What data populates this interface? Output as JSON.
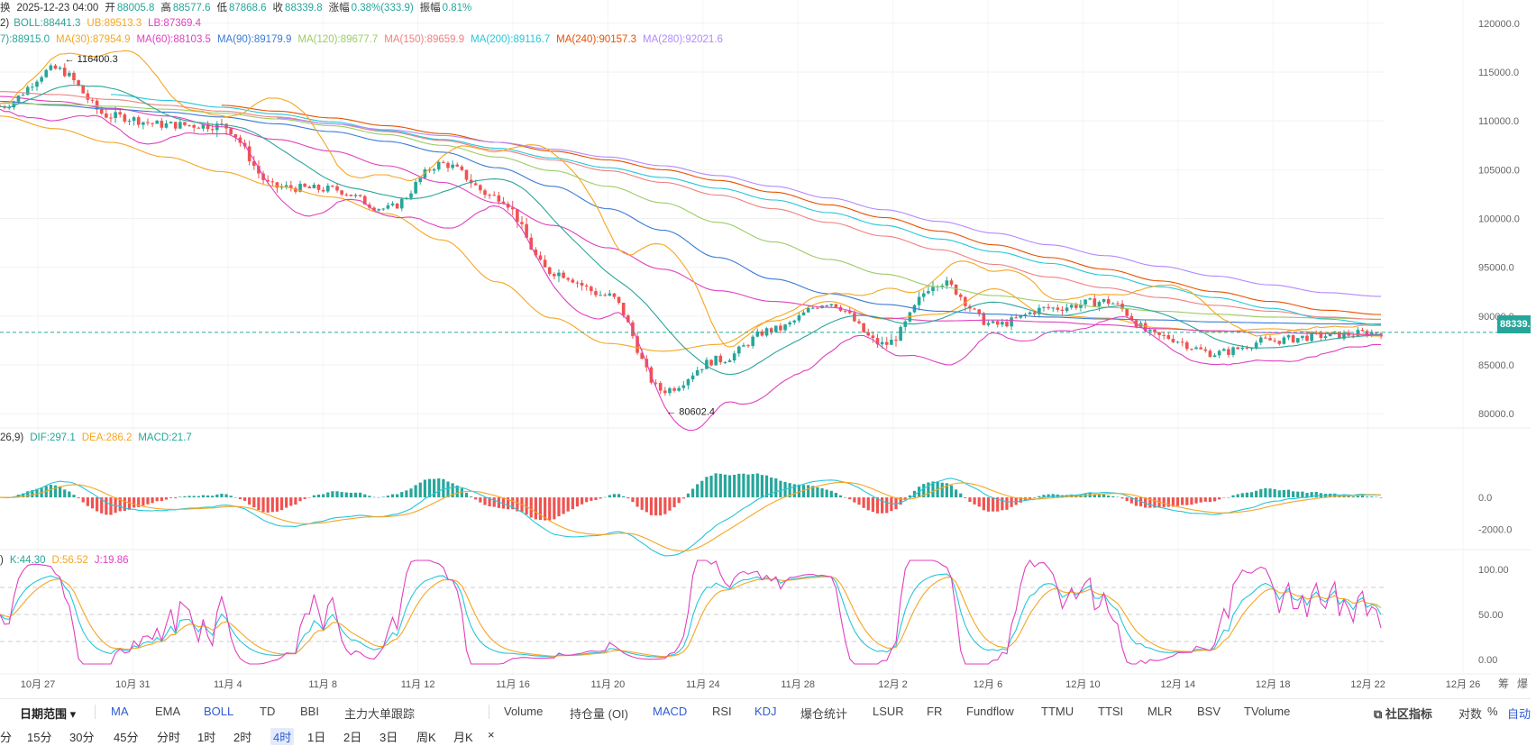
{
  "header": {
    "prefix": "换",
    "datetime": "2025-12-23 04:00",
    "open_label": "开",
    "open": "88005.8",
    "high_label": "高",
    "high": "88577.6",
    "low_label": "低",
    "low": "87868.6",
    "close_label": "收",
    "close": "88339.8",
    "change_label": "涨幅",
    "change": "0.38%(333.9)",
    "amplitude_label": "振幅",
    "amplitude": "0.81%"
  },
  "boll_legend": {
    "prefix": "2)",
    "boll": "BOLL:88441.3",
    "ub": "UB:89513.3",
    "lb": "LB:87369.4"
  },
  "ma_legend": [
    {
      "text": "7):88915.0",
      "color": "#2ba59a"
    },
    {
      "text": "MA(30):87954.9",
      "color": "#f5a623"
    },
    {
      "text": "MA(60):88103.5",
      "color": "#e040c0"
    },
    {
      "text": "MA(90):89179.9",
      "color": "#3a7bd5"
    },
    {
      "text": "MA(120):89677.7",
      "color": "#9ccc65"
    },
    {
      "text": "MA(150):89659.9",
      "color": "#f08080"
    },
    {
      "text": "MA(200):89116.7",
      "color": "#26c6da"
    },
    {
      "text": "MA(240):90157.3",
      "color": "#e65100"
    },
    {
      "text": "MA(280):92021.6",
      "color": "#b388ff"
    }
  ],
  "macd_legend": {
    "prefix": "26,9)",
    "dif": "DIF:297.1",
    "dea": "DEA:286.2",
    "macd": "MACD:21.7"
  },
  "kdj_legend": {
    "prefix": ")",
    "k": "K:44.30",
    "d": "D:56.52",
    "j": "J:19.86"
  },
  "colors": {
    "up": "#26a69a",
    "down": "#ef5350",
    "boll_mid": "#2ba59a",
    "boll_up": "#f5a623",
    "boll_low": "#e040c0",
    "dif": "#26c6da",
    "dea": "#f5a623",
    "k": "#26c6da",
    "d": "#f5a623",
    "j": "#e040c0"
  },
  "chart_data": [
    {
      "type": "candlestick",
      "series": [
        {
          "name": "MA(30)",
          "values": [
            110500,
            109200,
            107800,
            106300,
            104800,
            103300,
            102200,
            100500,
            97800,
            93500,
            89800,
            87200,
            86400,
            87100,
            89500,
            91500,
            89700,
            90200,
            92800,
            90100,
            89800,
            88800,
            88400,
            88700,
            88300,
            87950
          ]
        },
        {
          "name": "MA(60)",
          "values": [
            112500,
            112000,
            111300,
            110500,
            109400,
            108100,
            106900,
            105400,
            103700,
            101600,
            99300,
            97000,
            94800,
            92600,
            91500,
            90900,
            89800,
            89500,
            89600,
            89400,
            89100,
            88700,
            88500,
            88300,
            88200,
            88100
          ]
        },
        {
          "name": "MA(90)",
          "values": [
            112000,
            111600,
            111200,
            110900,
            110400,
            109700,
            108900,
            107900,
            106800,
            105200,
            103300,
            101000,
            98800,
            96000,
            93800,
            92300,
            91200,
            90500,
            90200,
            89900,
            89700,
            89600,
            89400,
            89300,
            89200,
            89180
          ]
        },
        {
          "name": "MA(120)",
          "values": [
            111800,
            111700,
            111500,
            111200,
            110800,
            110200,
            109500,
            108600,
            107500,
            106300,
            104900,
            103300,
            101600,
            99600,
            97600,
            95800,
            94300,
            93000,
            92100,
            91500,
            90900,
            90500,
            90200,
            89900,
            89800,
            89680
          ]
        },
        {
          "name": "MA(150)",
          "values": [
            113000,
            112700,
            112200,
            111600,
            111000,
            110400,
            109700,
            108900,
            108000,
            107000,
            106000,
            104900,
            103700,
            102400,
            101000,
            99600,
            98200,
            96800,
            95300,
            94000,
            92900,
            91900,
            91100,
            90500,
            89900,
            89660
          ]
        },
        {
          "name": "MA(200)",
          "values": [
            null,
            null,
            112700,
            112100,
            111400,
            110700,
            109900,
            109000,
            108100,
            107200,
            106200,
            105200,
            104200,
            103100,
            101900,
            100600,
            99300,
            97900,
            96600,
            95400,
            94200,
            93000,
            91900,
            90800,
            89700,
            89120
          ]
        },
        {
          "name": "MA(240)",
          "values": [
            null,
            null,
            null,
            null,
            111600,
            111000,
            110300,
            109500,
            108700,
            107800,
            106900,
            106000,
            105000,
            103900,
            102700,
            101400,
            100100,
            98700,
            97300,
            96000,
            94800,
            93600,
            92500,
            91500,
            90600,
            90160
          ]
        },
        {
          "name": "MA(280)",
          "values": [
            null,
            null,
            null,
            null,
            null,
            110300,
            109700,
            109100,
            108500,
            107800,
            107100,
            106300,
            105400,
            104400,
            103300,
            102100,
            100900,
            99700,
            98500,
            97300,
            96200,
            95100,
            94100,
            93200,
            92400,
            92020
          ]
        }
      ],
      "close": [
        111500,
        115300,
        110500,
        109600,
        109500,
        103200,
        103000,
        101000,
        105600,
        102200,
        94500,
        92100,
        82400,
        85500,
        88600,
        91400,
        87100,
        93500,
        89100,
        90800,
        91500,
        87900,
        86200,
        87500,
        88000,
        88340
      ],
      "high": [
        113000,
        116400,
        114000,
        111800,
        111500,
        106000,
        105400,
        103000,
        107200,
        104500,
        96500,
        94000,
        86500,
        87500,
        90500,
        93600,
        91800,
        94800,
        91800,
        94500,
        93800,
        91000,
        88400,
        89800,
        90500,
        90800
      ],
      "low": [
        109000,
        110500,
        106500,
        107000,
        101800,
        99500,
        100400,
        99800,
        101800,
        95300,
        88200,
        87800,
        80602.4,
        82500,
        86500,
        89700,
        84100,
        86000,
        87200,
        88800,
        87200,
        84800,
        84500,
        86500,
        87400,
        87400
      ],
      "ylim": [
        79000,
        121000
      ],
      "yticks": [
        80000,
        85000,
        90000,
        95000,
        100000,
        105000,
        110000,
        115000,
        120000
      ],
      "ytick_labels": [
        "80000.0",
        "85000.0",
        "90000.0",
        "95000.0",
        "100000.0",
        "105000.0",
        "110000.0",
        "115000.0",
        "120000.0"
      ],
      "xtick_labels": [
        "10月 27",
        "10月 31",
        "11月 4",
        "11月 8",
        "11月 12",
        "11月 16",
        "11月 20",
        "11月 24",
        "11月 28",
        "12月 2",
        "12月 6",
        "12月 10",
        "12月 14",
        "12月 18",
        "12月 22",
        "12月 26"
      ],
      "annotations": [
        {
          "text": "← 116400.3",
          "value": 116400.3
        },
        {
          "text": "← 80602.4",
          "value": 80602.4
        }
      ],
      "last_price_label": "88339.8",
      "last_price": 88339.8
    },
    {
      "type": "bar",
      "name": "MACD",
      "ylim": [
        -3000,
        3800
      ],
      "yticks": [
        0,
        -2000
      ],
      "ytick_labels": [
        "0.0",
        "-2000.0"
      ]
    },
    {
      "type": "line",
      "name": "KDJ",
      "ylim": [
        -8,
        112
      ],
      "yticks": [
        0,
        50,
        100
      ],
      "ytick_labels": [
        "0.00",
        "50.00",
        "100.00"
      ]
    }
  ],
  "toolbar": {
    "date_range": "日期范围",
    "main_indicators": [
      {
        "label": "MA",
        "active": true
      },
      {
        "label": "EMA",
        "active": false
      },
      {
        "label": "BOLL",
        "active": true
      },
      {
        "label": "TD",
        "active": false
      },
      {
        "label": "BBI",
        "active": false
      },
      {
        "label": "主力大单跟踪",
        "active": false
      }
    ],
    "sub_indicators": [
      {
        "label": "Volume",
        "active": false
      },
      {
        "label": "持仓量 (OI)",
        "active": false
      },
      {
        "label": "MACD",
        "active": true
      },
      {
        "label": "RSI",
        "active": false
      },
      {
        "label": "KDJ",
        "active": true
      },
      {
        "label": "爆仓统计",
        "active": false
      },
      {
        "label": "LSUR",
        "active": false
      },
      {
        "label": "FR",
        "active": false
      },
      {
        "label": "Fundflow",
        "active": false
      },
      {
        "label": "TTMU",
        "active": false
      },
      {
        "label": "TTSI",
        "active": false
      },
      {
        "label": "MLR",
        "active": false
      },
      {
        "label": "BSV",
        "active": false
      },
      {
        "label": "TVolume",
        "active": false
      }
    ],
    "community": "社区指标",
    "log": "对数",
    "percent": "%",
    "auto": "自动",
    "right_top_a": "筹",
    "right_top_b": "爆",
    "timeframes": [
      {
        "label": "分",
        "active": false
      },
      {
        "label": "15分",
        "active": false
      },
      {
        "label": "30分",
        "active": false
      },
      {
        "label": "45分",
        "active": false
      },
      {
        "label": "分时",
        "active": false
      },
      {
        "label": "1时",
        "active": false
      },
      {
        "label": "2时",
        "active": false
      },
      {
        "label": "4时",
        "active": true
      },
      {
        "label": "1日",
        "active": false
      },
      {
        "label": "2日",
        "active": false
      },
      {
        "label": "3日",
        "active": false
      },
      {
        "label": "周K",
        "active": false
      },
      {
        "label": "月K",
        "active": false
      }
    ],
    "close_symbol": "×"
  }
}
